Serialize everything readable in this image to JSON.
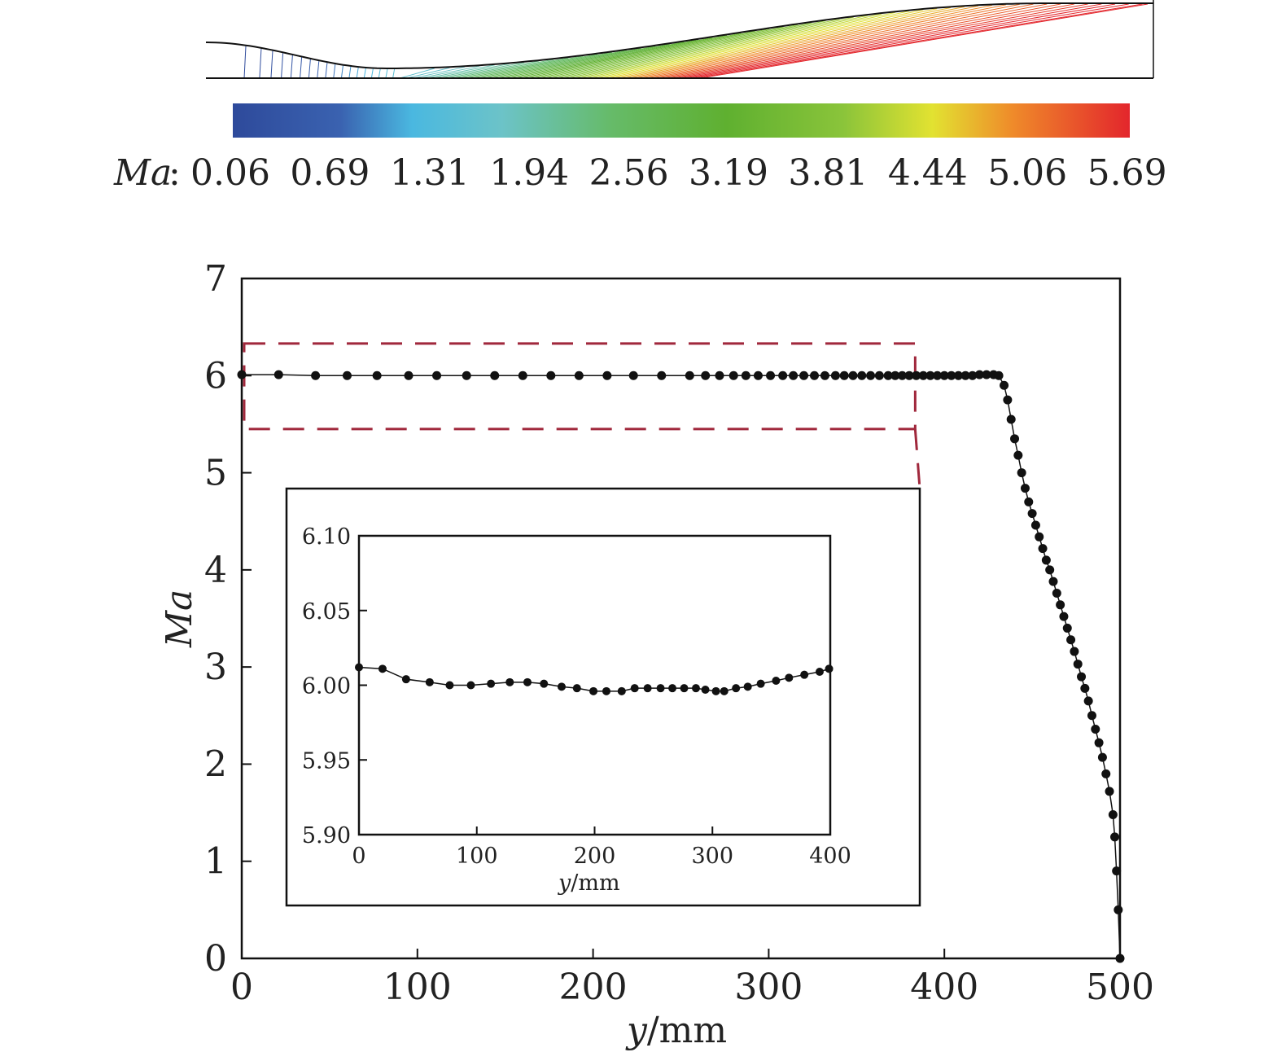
{
  "colorbar": {
    "label": "Ma",
    "separator": ":",
    "ticks": [
      "0.06",
      "0.69",
      "1.31",
      "1.94",
      "2.56",
      "3.19",
      "3.81",
      "4.44",
      "5.06",
      "5.69"
    ],
    "colors": [
      "#2e4a9b",
      "#3a62b0",
      "#4ab8e0",
      "#6cc3c8",
      "#66bb6a",
      "#5fb030",
      "#8ac43a",
      "#e2e231",
      "#ef8a2a",
      "#e3262c"
    ]
  },
  "chart_data": [
    {
      "type": "line",
      "role": "main",
      "xlabel_var": "y",
      "xlabel_unit": "/mm",
      "ylabel": "Ma",
      "xlim": [
        0,
        500
      ],
      "ylim": [
        0,
        7
      ],
      "xticks": [
        "0",
        "100",
        "200",
        "300",
        "400",
        "500"
      ],
      "yticks": [
        "0",
        "1",
        "2",
        "3",
        "4",
        "5",
        "6",
        "7"
      ],
      "grid": false,
      "marker": "circle",
      "highlight_box": {
        "x": [
          0,
          382
        ],
        "y": [
          5.45,
          6.33
        ],
        "color": "#a0283c"
      },
      "series": [
        {
          "x": [
            0,
            21,
            42,
            60,
            77,
            95,
            111,
            128,
            144,
            160,
            176,
            192,
            208,
            223,
            239,
            255,
            264,
            272,
            280,
            287,
            294,
            301,
            308,
            314,
            320,
            326,
            332,
            338,
            343,
            348,
            353,
            358,
            363,
            368,
            372,
            376,
            380,
            384,
            388,
            392,
            396,
            400,
            404,
            408,
            412,
            416,
            420,
            424,
            428,
            431,
            434,
            436,
            438,
            440,
            442,
            444,
            446,
            448,
            450,
            452,
            454,
            456,
            458,
            460,
            462,
            464,
            466,
            468,
            470,
            472,
            474,
            476,
            478,
            480,
            482,
            484,
            486,
            488,
            490,
            492,
            494,
            496,
            497,
            498,
            499,
            500
          ],
          "y": [
            6.01,
            6.01,
            6.0,
            6.0,
            6.0,
            6.0,
            6.0,
            6.0,
            6.0,
            6.0,
            6.0,
            6.0,
            6.0,
            6.0,
            6.0,
            6.0,
            6.0,
            6.0,
            6.0,
            6.0,
            6.0,
            6.0,
            6.0,
            6.0,
            6.0,
            6.0,
            6.0,
            6.0,
            6.0,
            6.0,
            6.0,
            6.0,
            6.0,
            6.0,
            6.0,
            6.0,
            6.0,
            6.0,
            6.0,
            6.0,
            6.0,
            6.0,
            6.0,
            6.0,
            6.0,
            6.0,
            6.01,
            6.01,
            6.01,
            6.0,
            5.9,
            5.75,
            5.55,
            5.35,
            5.18,
            5.0,
            4.84,
            4.7,
            4.58,
            4.46,
            4.34,
            4.22,
            4.1,
            4.0,
            3.88,
            3.76,
            3.64,
            3.52,
            3.4,
            3.28,
            3.16,
            3.03,
            2.9,
            2.78,
            2.65,
            2.5,
            2.36,
            2.22,
            2.07,
            1.9,
            1.72,
            1.48,
            1.25,
            0.9,
            0.5,
            0.0
          ]
        }
      ]
    },
    {
      "type": "line",
      "role": "inset",
      "xlabel_var": "y",
      "xlabel_unit": "/mm",
      "xlim": [
        0,
        400
      ],
      "ylim": [
        5.9,
        6.1
      ],
      "xticks": [
        "0",
        "100",
        "200",
        "300",
        "400"
      ],
      "yticks": [
        "5.90",
        "5.95",
        "6.00",
        "6.05",
        "6.10"
      ],
      "grid": false,
      "marker": "circle",
      "series": [
        {
          "x": [
            0,
            20,
            40,
            60,
            77,
            95,
            112,
            128,
            143,
            157,
            172,
            185,
            199,
            210,
            223,
            234,
            245,
            256,
            266,
            276,
            286,
            294,
            303,
            310,
            320,
            330,
            341,
            354,
            365,
            378,
            391,
            399
          ],
          "y": [
            6.012,
            6.011,
            6.004,
            6.002,
            6.0,
            6.0,
            6.001,
            6.002,
            6.002,
            6.001,
            5.999,
            5.998,
            5.996,
            5.996,
            5.996,
            5.998,
            5.998,
            5.998,
            5.998,
            5.998,
            5.998,
            5.997,
            5.996,
            5.996,
            5.998,
            5.999,
            6.001,
            6.003,
            6.005,
            6.007,
            6.009,
            6.011
          ]
        }
      ]
    }
  ]
}
